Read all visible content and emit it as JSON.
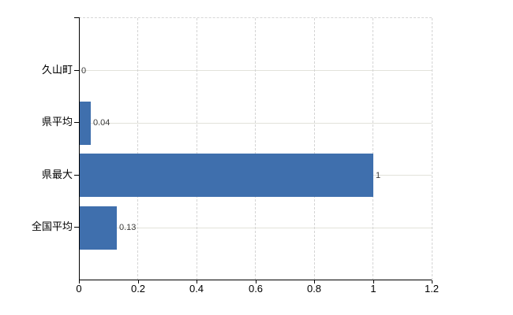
{
  "chart_data": {
    "type": "bar",
    "orientation": "horizontal",
    "title": "",
    "xlabel": "",
    "ylabel": "",
    "categories": [
      "久山町",
      "県平均",
      "県最大",
      "全国平均"
    ],
    "values": [
      0,
      0.04,
      1,
      0.13
    ],
    "value_labels": [
      "0",
      "0.04",
      "1",
      "0.13"
    ],
    "x_ticks": [
      0,
      0.2,
      0.4,
      0.6,
      0.8,
      1,
      1.2
    ],
    "x_tick_labels": [
      "0",
      "0.2",
      "0.4",
      "0.6",
      "0.8",
      "1",
      "1.2"
    ],
    "xlim": [
      0,
      1.2
    ],
    "grid": true,
    "legend": false,
    "bar_color": "#3f6fad",
    "hgrid_color": "#e2e2da",
    "vgrid_color": "#d4d4d4",
    "axis_color": "#000000",
    "value_label_color": "#3c3c3c"
  }
}
